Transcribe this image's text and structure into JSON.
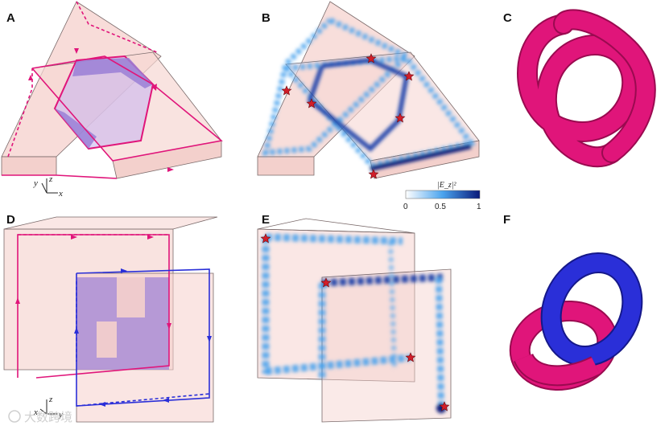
{
  "panels": {
    "a": {
      "letter": "A"
    },
    "b": {
      "letter": "B"
    },
    "c": {
      "letter": "C"
    },
    "d": {
      "letter": "D"
    },
    "e": {
      "letter": "E"
    },
    "f": {
      "letter": "F"
    }
  },
  "axes_top": {
    "x": "x",
    "y": "y",
    "z": "z"
  },
  "axes_bottom": {
    "x": "x",
    "y": "y",
    "z": "z"
  },
  "colorbar": {
    "title": "|E_z|²",
    "ticks": [
      "0",
      "0.5",
      "1"
    ],
    "range": [
      0,
      1
    ],
    "colors": [
      "#ffffff",
      "#4aa3ee",
      "#0a1a7a"
    ]
  },
  "colors": {
    "slab": "#f5d0cc",
    "slab_edge": "#7a6a6a",
    "magenta": "#e0157a",
    "blue": "#2a2fd8",
    "purple": "#9a7fd6",
    "star": "#d21e2a"
  },
  "watermark": {
    "text": "大数跨境"
  }
}
